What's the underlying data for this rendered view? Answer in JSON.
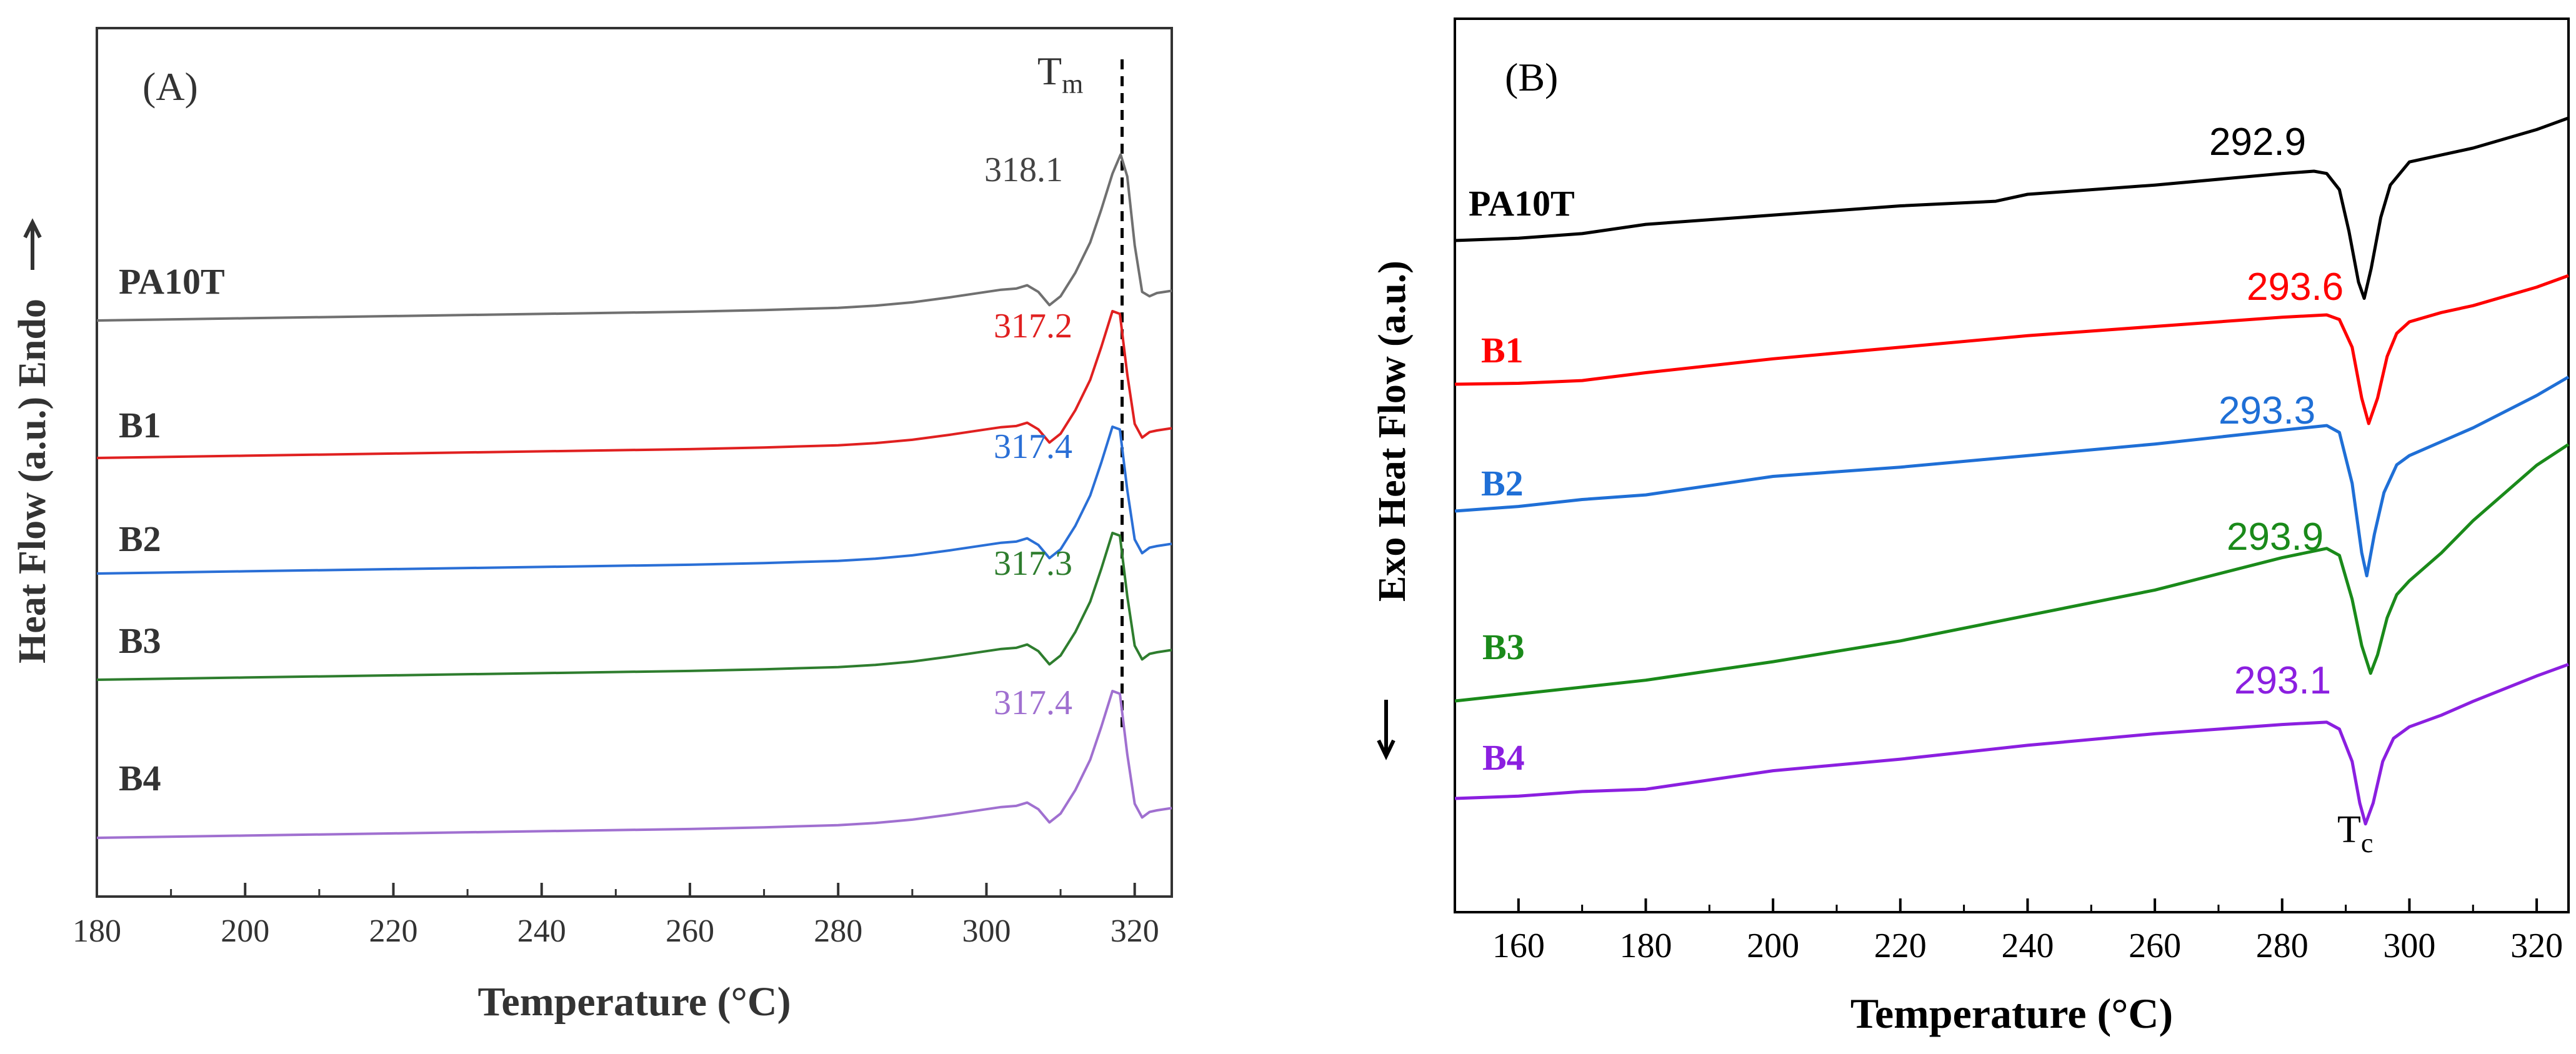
{
  "chart_data": [
    {
      "type": "line",
      "panel_label": "(A)",
      "xlabel": "Temperature (°C)",
      "ylabel": "Heat Flow (a.u.)  Endo",
      "xlim": [
        180,
        325
      ],
      "x_ticks": [
        "180",
        "200",
        "220",
        "240",
        "260",
        "280",
        "300",
        "320"
      ],
      "annotation": {
        "main": "T",
        "sub": "m",
        "x": 318.3
      },
      "series": [
        {
          "name": "PA10T",
          "color": "#707070",
          "peak_label": "318.1",
          "x": [
            180,
            200,
            220,
            240,
            260,
            270,
            280,
            285,
            290,
            295,
            300,
            302,
            304,
            305.5,
            307,
            308.5,
            310,
            312,
            314,
            315.5,
            317,
            318.1,
            319,
            320,
            321,
            322,
            323,
            325
          ],
          "y": [
            0.08,
            0.12,
            0.16,
            0.2,
            0.24,
            0.27,
            0.31,
            0.35,
            0.41,
            0.5,
            0.6,
            0.64,
            0.66,
            0.72,
            0.6,
            0.36,
            0.52,
            0.95,
            1.5,
            2.1,
            2.75,
            3.1,
            2.7,
            1.45,
            0.6,
            0.52,
            0.58,
            0.62
          ]
        },
        {
          "name": "B1",
          "color": "#e02020",
          "peak_label": "317.2",
          "x": [
            180,
            200,
            220,
            240,
            260,
            270,
            280,
            285,
            290,
            295,
            300,
            302,
            304,
            305.5,
            307,
            308.5,
            310,
            312,
            314,
            315.5,
            317,
            318,
            319,
            320,
            321,
            322,
            323,
            325
          ],
          "y": [
            0.08,
            0.12,
            0.16,
            0.2,
            0.24,
            0.27,
            0.31,
            0.35,
            0.41,
            0.5,
            0.6,
            0.64,
            0.66,
            0.72,
            0.6,
            0.36,
            0.52,
            0.95,
            1.5,
            2.1,
            2.75,
            2.7,
            1.6,
            0.7,
            0.45,
            0.55,
            0.58,
            0.62
          ]
        },
        {
          "name": "B2",
          "color": "#2a6fd6",
          "peak_label": "317.4",
          "x": [
            180,
            200,
            220,
            240,
            260,
            270,
            280,
            285,
            290,
            295,
            300,
            302,
            304,
            305.5,
            307,
            308.5,
            310,
            312,
            314,
            315.5,
            317,
            318,
            319,
            320,
            321,
            322,
            323,
            325
          ],
          "y": [
            0.08,
            0.12,
            0.16,
            0.2,
            0.24,
            0.27,
            0.31,
            0.35,
            0.41,
            0.5,
            0.6,
            0.64,
            0.66,
            0.72,
            0.6,
            0.36,
            0.52,
            0.95,
            1.5,
            2.1,
            2.75,
            2.7,
            1.6,
            0.7,
            0.45,
            0.55,
            0.58,
            0.62
          ]
        },
        {
          "name": "B3",
          "color": "#2e7d2e",
          "peak_label": "317.3",
          "x": [
            180,
            200,
            220,
            240,
            260,
            270,
            280,
            285,
            290,
            295,
            300,
            302,
            304,
            305.5,
            307,
            308.5,
            310,
            312,
            314,
            315.5,
            317,
            318,
            319,
            320,
            321,
            322,
            323,
            325
          ],
          "y": [
            0.08,
            0.12,
            0.16,
            0.2,
            0.24,
            0.27,
            0.31,
            0.35,
            0.41,
            0.5,
            0.6,
            0.64,
            0.66,
            0.72,
            0.6,
            0.36,
            0.52,
            0.95,
            1.5,
            2.1,
            2.75,
            2.7,
            1.6,
            0.7,
            0.45,
            0.55,
            0.58,
            0.62
          ]
        },
        {
          "name": "B4",
          "color": "#a070d0",
          "peak_label": "317.4",
          "x": [
            180,
            200,
            220,
            240,
            260,
            270,
            280,
            285,
            290,
            295,
            300,
            302,
            304,
            305.5,
            307,
            308.5,
            310,
            312,
            314,
            315.5,
            317,
            318,
            319,
            320,
            321,
            322,
            323,
            325
          ],
          "y": [
            0.08,
            0.12,
            0.16,
            0.2,
            0.24,
            0.27,
            0.31,
            0.35,
            0.41,
            0.5,
            0.6,
            0.64,
            0.66,
            0.72,
            0.6,
            0.36,
            0.52,
            0.95,
            1.5,
            2.1,
            2.75,
            2.7,
            1.6,
            0.7,
            0.45,
            0.55,
            0.58,
            0.62
          ]
        }
      ]
    },
    {
      "type": "line",
      "panel_label": "(B)",
      "xlabel": "Temperature (°C)",
      "ylabel": "Exo  Heat Flow (a.u.)",
      "xlim": [
        150,
        325
      ],
      "x_ticks": [
        "160",
        "180",
        "200",
        "220",
        "240",
        "260",
        "280",
        "300",
        "320"
      ],
      "annotation": {
        "main": "T",
        "sub": "c",
        "x": 293.1
      },
      "series": [
        {
          "name": "PA10T",
          "color": "#000000",
          "peak_label": "292.9",
          "x": [
            150,
            160,
            170,
            180,
            200,
            220,
            235,
            240,
            260,
            280,
            285,
            287,
            289,
            290.5,
            292,
            292.9,
            294,
            295.5,
            297,
            300,
            305,
            310,
            320,
            325
          ],
          "y": [
            0,
            0.05,
            0.15,
            0.35,
            0.55,
            0.75,
            0.85,
            1,
            1.2,
            1.45,
            1.5,
            1.45,
            1.1,
            0.2,
            -0.9,
            -1.25,
            -0.6,
            0.5,
            1.2,
            1.7,
            1.85,
            2,
            2.4,
            2.65
          ]
        },
        {
          "name": "B1",
          "color": "#ff0000",
          "peak_label": "293.6",
          "x": [
            150,
            160,
            170,
            180,
            200,
            220,
            240,
            260,
            280,
            287,
            289,
            291,
            292.5,
            293.6,
            295,
            296.5,
            298,
            300,
            305,
            310,
            320,
            325
          ],
          "y": [
            0,
            0.02,
            0.08,
            0.25,
            0.55,
            0.8,
            1.05,
            1.25,
            1.45,
            1.5,
            1.4,
            0.8,
            -0.3,
            -0.85,
            -0.3,
            0.6,
            1.1,
            1.35,
            1.55,
            1.7,
            2.1,
            2.35
          ]
        },
        {
          "name": "B2",
          "color": "#1f6fd6",
          "peak_label": "293.3",
          "x": [
            150,
            160,
            170,
            180,
            200,
            220,
            240,
            260,
            280,
            287,
            289,
            291,
            292.5,
            293.3,
            294.5,
            296,
            298,
            300,
            305,
            310,
            320,
            325
          ],
          "y": [
            0,
            0.1,
            0.25,
            0.35,
            0.75,
            0.95,
            1.2,
            1.45,
            1.75,
            1.85,
            1.7,
            0.6,
            -0.9,
            -1.4,
            -0.5,
            0.4,
            1.0,
            1.2,
            1.5,
            1.8,
            2.5,
            2.9
          ]
        },
        {
          "name": "B3",
          "color": "#1a8a1a",
          "peak_label": "293.9",
          "x": [
            150,
            160,
            170,
            180,
            200,
            220,
            240,
            260,
            280,
            287,
            289,
            291,
            292.5,
            293.9,
            295,
            296.5,
            298,
            300,
            305,
            310,
            320,
            325
          ],
          "y": [
            0,
            0.15,
            0.3,
            0.45,
            0.85,
            1.3,
            1.85,
            2.4,
            3.1,
            3.3,
            3.15,
            2.2,
            1.2,
            0.6,
            1.0,
            1.8,
            2.3,
            2.6,
            3.2,
            3.9,
            5.1,
            5.55
          ]
        },
        {
          "name": "B4",
          "color": "#8b1fe0",
          "peak_label": "293.1",
          "x": [
            150,
            160,
            170,
            180,
            200,
            220,
            240,
            260,
            280,
            287,
            289,
            291,
            292.2,
            293.1,
            294.3,
            295.8,
            297.5,
            300,
            305,
            310,
            320,
            325
          ],
          "y": [
            0,
            0.05,
            0.15,
            0.2,
            0.6,
            0.85,
            1.15,
            1.4,
            1.6,
            1.65,
            1.5,
            0.8,
            -0.1,
            -0.55,
            -0.1,
            0.8,
            1.3,
            1.55,
            1.8,
            2.1,
            2.65,
            2.9
          ]
        }
      ]
    }
  ]
}
